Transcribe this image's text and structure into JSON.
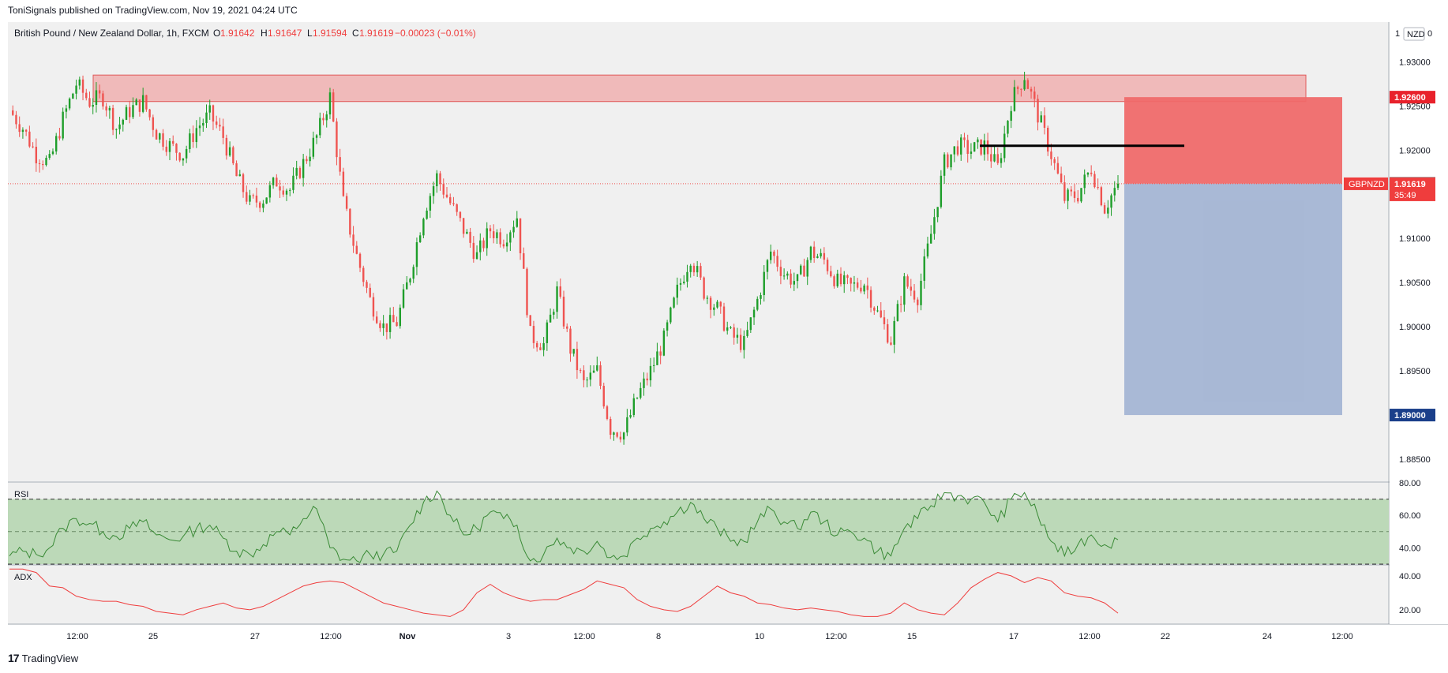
{
  "header": {
    "published": "ToniSignals published on TradingView.com, Nov 19, 2021 04:24 UTC"
  },
  "legend": {
    "symbol": "British Pound / New Zealand Dollar, 1h, FXCM",
    "o_label": "O",
    "o": "1.91642",
    "h_label": "H",
    "h": "1.91647",
    "l_label": "L",
    "l": "1.91594",
    "c_label": "C",
    "c": "1.91619",
    "change": "−0.00023 (−0.01%)"
  },
  "currency_button": "NZD",
  "scale_top_label": "1",
  "scale_top_right": "0",
  "footer": {
    "brand": "TradingView",
    "mark": "17"
  },
  "colors": {
    "up": "#26a69a",
    "candle_up": "#1e9e2a",
    "candle_down": "#ef5350",
    "resistance_zone": "#f0a8a8",
    "stop_zone": "#ef6a6a",
    "target_zone": "#a4b5d4",
    "rsi_band": "#bcd9b8",
    "rsi_line": "#3a8a36",
    "adx_line": "#ef3d3d",
    "price_tag": "#ef3d3d",
    "target_tag": "#1a3f8a",
    "stop_tag": "#e8212b"
  },
  "chart_data": [
    {
      "type": "candlestick",
      "symbol": "GBPNZD",
      "timeframe": "1h",
      "ylim": [
        1.8825,
        1.9345
      ],
      "y_ticks": [
        "1.93000",
        "1.92500",
        "1.92000",
        "1.91500",
        "1.91000",
        "1.90500",
        "1.90000",
        "1.89500",
        "1.89000",
        "1.88500"
      ],
      "x_ticks": [
        "12:00",
        "25",
        "27",
        "12:00",
        "Nov",
        "3",
        "12:00",
        "8",
        "10",
        "12:00",
        "15",
        "17",
        "12:00",
        "22",
        "24",
        "12:00"
      ],
      "approx_closes": [
        1.9245,
        1.9225,
        1.9195,
        1.9185,
        1.9235,
        1.9275,
        1.9255,
        1.926,
        1.9225,
        1.9245,
        1.9255,
        1.922,
        1.9205,
        1.9195,
        1.9225,
        1.924,
        1.9215,
        1.917,
        1.914,
        1.9145,
        1.9165,
        1.9155,
        1.9185,
        1.9215,
        1.926,
        1.914,
        1.908,
        1.903,
        1.9,
        1.9005,
        1.906,
        1.913,
        1.917,
        1.914,
        1.911,
        1.908,
        1.911,
        1.91,
        1.9125,
        1.899,
        1.898,
        1.904,
        1.8975,
        1.8935,
        1.895,
        1.8885,
        1.888,
        1.892,
        1.895,
        1.8985,
        1.904,
        1.908,
        1.904,
        1.902,
        1.899,
        1.898,
        1.903,
        1.9085,
        1.906,
        1.905,
        1.9085,
        1.9075,
        1.905,
        1.9045,
        1.905,
        1.9015,
        1.8985,
        1.905,
        1.9035,
        1.9105,
        1.9185,
        1.9205,
        1.92,
        1.9205,
        1.918,
        1.9255,
        1.9285,
        1.924,
        1.9195,
        1.9145,
        1.915,
        1.918,
        1.9135,
        1.9162
      ],
      "last_price": "1.91619",
      "last_price_label": "GBPNZD",
      "countdown": "35:49",
      "marked_price": "1.91623",
      "resistance_zone": [
        1.9255,
        1.9285
      ],
      "position": {
        "entry": 1.9162,
        "stop": "1.92600",
        "target": "1.89000"
      },
      "horizontal_level": 1.9205
    },
    {
      "type": "line",
      "name": "RSI",
      "ylim": [
        30,
        80
      ],
      "y_ticks": [
        "80.00",
        "60.00",
        "40.00"
      ],
      "band": [
        30,
        70
      ],
      "mid": 50,
      "values": [
        35,
        38,
        36,
        40,
        52,
        58,
        55,
        50,
        47,
        52,
        56,
        48,
        45,
        47,
        52,
        54,
        46,
        38,
        36,
        42,
        50,
        48,
        58,
        64,
        40,
        33,
        32,
        36,
        36,
        38,
        54,
        68,
        75,
        60,
        48,
        52,
        62,
        58,
        54,
        32,
        36,
        46,
        40,
        38,
        44,
        34,
        35,
        46,
        52,
        56,
        62,
        68,
        58,
        52,
        44,
        44,
        56,
        64,
        56,
        52,
        62,
        56,
        48,
        50,
        46,
        38,
        35,
        52,
        58,
        66,
        74,
        72,
        70,
        68,
        56,
        70,
        74,
        60,
        44,
        35,
        42,
        48,
        42,
        45
      ]
    },
    {
      "type": "line",
      "name": "ADX",
      "ylim": [
        12,
        46
      ],
      "y_ticks": [
        "40.00",
        "20.00"
      ],
      "values": [
        44,
        44,
        42,
        34,
        33,
        28,
        26,
        25,
        25,
        23,
        22,
        19,
        18,
        17,
        20,
        22,
        24,
        21,
        20,
        22,
        26,
        30,
        34,
        36,
        37,
        36,
        32,
        28,
        24,
        22,
        20,
        18,
        17,
        16,
        20,
        30,
        35,
        30,
        27,
        25,
        26,
        26,
        29,
        32,
        37,
        35,
        33,
        26,
        22,
        20,
        19,
        22,
        28,
        34,
        30,
        28,
        24,
        23,
        21,
        20,
        21,
        20,
        19,
        17,
        16,
        16,
        18,
        24,
        20,
        18,
        17,
        24,
        33,
        38,
        42,
        40,
        36,
        39,
        37,
        30,
        28,
        27,
        24,
        18
      ]
    }
  ]
}
